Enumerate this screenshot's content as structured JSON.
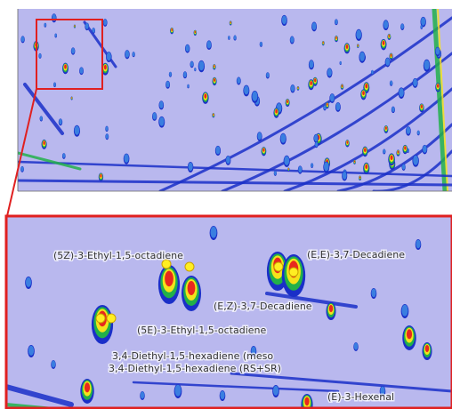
{
  "zoom_panel": {
    "labels": [
      "(5Z)-3-Ethyl-1,5-octadiene",
      "(E,E)-3,7-Decadiene",
      "(E,Z)-3,7-Decadiene",
      "(5E)-3-Ethyl-1,5-octadiene",
      "3,4-Diethyl-1,5-hexadiene (meso",
      "3,4-Diethyl-1,5-hexadiene (RS+SR)",
      "(E)-3-Hexenal"
    ]
  }
}
